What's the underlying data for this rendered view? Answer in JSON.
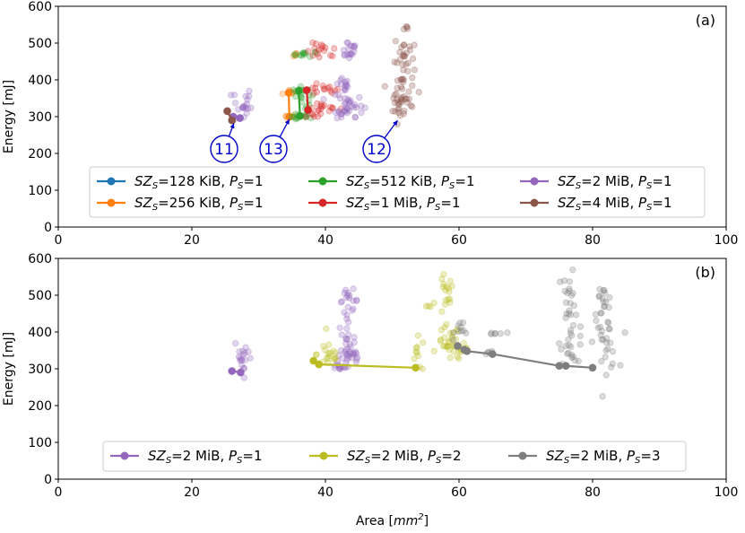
{
  "chart_data": [
    {
      "type": "scatter",
      "panel_label": "(a)",
      "xlabel": "",
      "ylabel": "Energy [mJ]",
      "xlim": [
        0,
        100
      ],
      "ylim": [
        0,
        600
      ],
      "xticks": [
        "0",
        "20",
        "40",
        "60",
        "80",
        "100"
      ],
      "yticks": [
        "0",
        "100",
        "200",
        "300",
        "400",
        "500",
        "600"
      ],
      "legend_position": "lower-center",
      "series": [
        {
          "name": "SZ_S=128 KiB, P_S=1",
          "legend_main": "SZ",
          "legend_sub": "S",
          "legend_value": "=128 KiB, ",
          "legend_p": "P",
          "legend_psub": "S",
          "legend_pvalue": "=1",
          "color": "#1f77b4",
          "frontier": [],
          "clusters": []
        },
        {
          "name": "SZ_S=256 KiB, P_S=1",
          "legend_main": "SZ",
          "legend_sub": "S",
          "legend_value": "=256 KiB, ",
          "legend_p": "P",
          "legend_psub": "S",
          "legend_pvalue": "=1",
          "color": "#ff7f0e",
          "frontier": [
            [
              34.5,
              365
            ],
            [
              34.6,
              300
            ]
          ],
          "clusters": [
            [
              34.8,
              365,
              1.0,
              8,
              6
            ],
            [
              34.8,
              300,
              1.0,
              8,
              6
            ],
            [
              35.2,
              468,
              0.6,
              5,
              4
            ]
          ]
        },
        {
          "name": "SZ_S=512 KiB, P_S=1",
          "legend_main": "SZ",
          "legend_sub": "S",
          "legend_value": "=512 KiB, ",
          "legend_p": "P",
          "legend_psub": "S",
          "legend_pvalue": "=1",
          "color": "#2ca02c",
          "frontier": [
            [
              36.0,
              370
            ],
            [
              36.2,
              302
            ]
          ],
          "clusters": [
            [
              36.6,
              370,
              1.4,
              10,
              12
            ],
            [
              36.6,
              300,
              1.4,
              8,
              12
            ],
            [
              37.0,
              470,
              1.6,
              6,
              12
            ],
            [
              37.0,
              340,
              1.2,
              20,
              8
            ]
          ]
        },
        {
          "name": "SZ_S=1 MiB, P_S=1",
          "legend_main": "SZ",
          "legend_sub": "S",
          "legend_value": "=1 MiB, ",
          "legend_p": "P",
          "legend_psub": "S",
          "legend_pvalue": "=1",
          "color": "#d62728",
          "frontier": [
            [
              37.2,
              372
            ],
            [
              37.4,
              318
            ]
          ],
          "clusters": [
            [
              39.5,
              372,
              2.2,
              12,
              14
            ],
            [
              39.5,
              325,
              2.2,
              12,
              14
            ],
            [
              39.5,
              475,
              2.0,
              20,
              16
            ],
            [
              38.5,
              305,
              1.2,
              6,
              6
            ]
          ]
        },
        {
          "name": "SZ_S=2 MiB, P_S=1",
          "legend_main": "SZ",
          "legend_sub": "S",
          "legend_value": "=2 MiB, ",
          "legend_p": "P",
          "legend_psub": "S",
          "legend_pvalue": "=1",
          "color": "#9467bd",
          "frontier": [
            [
              26.2,
              300
            ],
            [
              27.2,
              296
            ]
          ],
          "clusters": [
            [
              27.5,
              330,
              1.2,
              45,
              20
            ],
            [
              43.5,
              485,
              1.2,
              25,
              18
            ],
            [
              43.0,
              380,
              1.2,
              40,
              18
            ],
            [
              43.5,
              330,
              1.8,
              25,
              22
            ],
            [
              42.5,
              310,
              1.2,
              10,
              10
            ]
          ]
        },
        {
          "name": "SZ_S=4 MiB, P_S=1",
          "legend_main": "SZ",
          "legend_sub": "S",
          "legend_value": "=4 MiB, ",
          "legend_p": "P",
          "legend_psub": "S",
          "legend_pvalue": "=1",
          "color": "#8c564b",
          "frontier": [
            [
              25.3,
              315
            ],
            [
              26.0,
              290
            ]
          ],
          "clusters": [
            [
              51.8,
              470,
              1.2,
              50,
              22
            ],
            [
              51.5,
              375,
              1.5,
              50,
              30
            ],
            [
              51.5,
              320,
              1.2,
              20,
              14
            ],
            [
              52.0,
              540,
              0.5,
              10,
              3
            ]
          ]
        }
      ],
      "annotations": [
        {
          "text": "11",
          "target": [
            26.3,
            282
          ]
        },
        {
          "text": "13",
          "target": [
            34.6,
            293
          ]
        },
        {
          "text": "12",
          "target": [
            50.8,
            290
          ]
        }
      ]
    },
    {
      "type": "scatter",
      "panel_label": "(b)",
      "xlabel_main": "Area [",
      "xlabel_unit": "mm",
      "xlabel_exp": "2",
      "xlabel_end": "]",
      "ylabel": "Energy [mJ]",
      "xlim": [
        0,
        100
      ],
      "ylim": [
        0,
        600
      ],
      "xticks": [
        "0",
        "20",
        "40",
        "60",
        "80",
        "100"
      ],
      "yticks": [
        "0",
        "100",
        "200",
        "300",
        "400",
        "500",
        "600"
      ],
      "legend_position": "lower-center",
      "series": [
        {
          "name": "SZ_S=2 MiB, P_S=1",
          "legend_main": "SZ",
          "legend_sub": "S",
          "legend_value": "=2 MiB, ",
          "legend_p": "P",
          "legend_psub": "S",
          "legend_pvalue": "=1",
          "color": "#9467bd",
          "frontier": [
            [
              26.0,
              294
            ],
            [
              27.3,
              290
            ]
          ],
          "clusters": [
            [
              27.8,
              335,
              1.2,
              45,
              18
            ],
            [
              43.5,
              485,
              1.2,
              25,
              18
            ],
            [
              43.0,
              380,
              1.2,
              40,
              18
            ],
            [
              43.5,
              330,
              1.8,
              25,
              22
            ],
            [
              42.5,
              305,
              1.2,
              8,
              10
            ]
          ]
        },
        {
          "name": "SZ_S=2 MiB, P_S=2",
          "legend_main": "SZ",
          "legend_sub": "S",
          "legend_value": "=2 MiB, ",
          "legend_p": "P",
          "legend_psub": "S",
          "legend_pvalue": "=2",
          "color": "#bcbd22",
          "frontier": [
            [
              38.2,
              322
            ],
            [
              39.0,
              312
            ],
            [
              53.5,
              303
            ]
          ],
          "clusters": [
            [
              40.5,
              340,
              1.5,
              35,
              18
            ],
            [
              54.0,
              340,
              1.0,
              40,
              10
            ],
            [
              55.5,
              470,
              0.8,
              10,
              4
            ],
            [
              58.0,
              500,
              1.0,
              50,
              16
            ],
            [
              58.5,
              370,
              1.4,
              40,
              28
            ],
            [
              60.5,
              340,
              1.2,
              20,
              10
            ]
          ]
        },
        {
          "name": "SZ_S=2 MiB, P_S=3",
          "legend_main": "SZ",
          "legend_sub": "S",
          "legend_value": "=2 MiB, ",
          "legend_p": "P",
          "legend_psub": "S",
          "legend_pvalue": "=3",
          "color": "#7f7f7f",
          "frontier": [
            [
              59.8,
              362
            ],
            [
              60.8,
              352
            ],
            [
              61.2,
              348
            ],
            [
              65.0,
              340
            ],
            [
              75.0,
              308
            ],
            [
              76.0,
              308
            ],
            [
              80.0,
              303
            ]
          ],
          "clusters": [
            [
              60.5,
              410,
              1.0,
              20,
              10
            ],
            [
              65.5,
              395,
              1.2,
              8,
              6
            ],
            [
              65.0,
              345,
              1.0,
              8,
              5
            ],
            [
              76.5,
              500,
              0.8,
              60,
              18
            ],
            [
              77.0,
              375,
              1.5,
              50,
              22
            ],
            [
              81.5,
              480,
              1.2,
              40,
              16
            ],
            [
              82.0,
              370,
              1.5,
              60,
              26
            ]
          ]
        }
      ],
      "annotations": []
    }
  ]
}
